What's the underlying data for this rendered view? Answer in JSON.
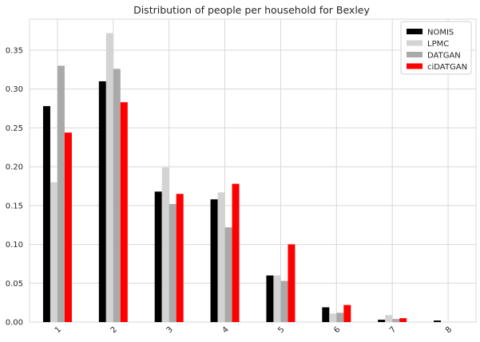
{
  "chart_data": {
    "type": "bar",
    "title": "Distribution of people per household for Bexley",
    "xlabel": "",
    "ylabel": "",
    "categories": [
      "1",
      "2",
      "3",
      "4",
      "5",
      "6",
      "7",
      "8"
    ],
    "yticks": [
      "0.00",
      "0.05",
      "0.10",
      "0.15",
      "0.20",
      "0.25",
      "0.30",
      "0.35"
    ],
    "ylim": [
      0,
      0.39
    ],
    "grid": true,
    "legend_position": "top-right",
    "series": [
      {
        "name": "NOMIS",
        "color": "#000000",
        "values": [
          0.278,
          0.31,
          0.168,
          0.158,
          0.06,
          0.019,
          0.003,
          0.002
        ]
      },
      {
        "name": "LPMC",
        "color": "#d3d3d3",
        "values": [
          0.18,
          0.372,
          0.199,
          0.167,
          0.06,
          0.011,
          0.009,
          0.0
        ]
      },
      {
        "name": "DATGAN",
        "color": "#a9a9a9",
        "values": [
          0.33,
          0.326,
          0.152,
          0.122,
          0.053,
          0.012,
          0.004,
          0.0
        ]
      },
      {
        "name": "ciDATGAN",
        "color": "#ff0000",
        "values": [
          0.244,
          0.283,
          0.165,
          0.178,
          0.1,
          0.022,
          0.005,
          0.0
        ]
      }
    ]
  }
}
